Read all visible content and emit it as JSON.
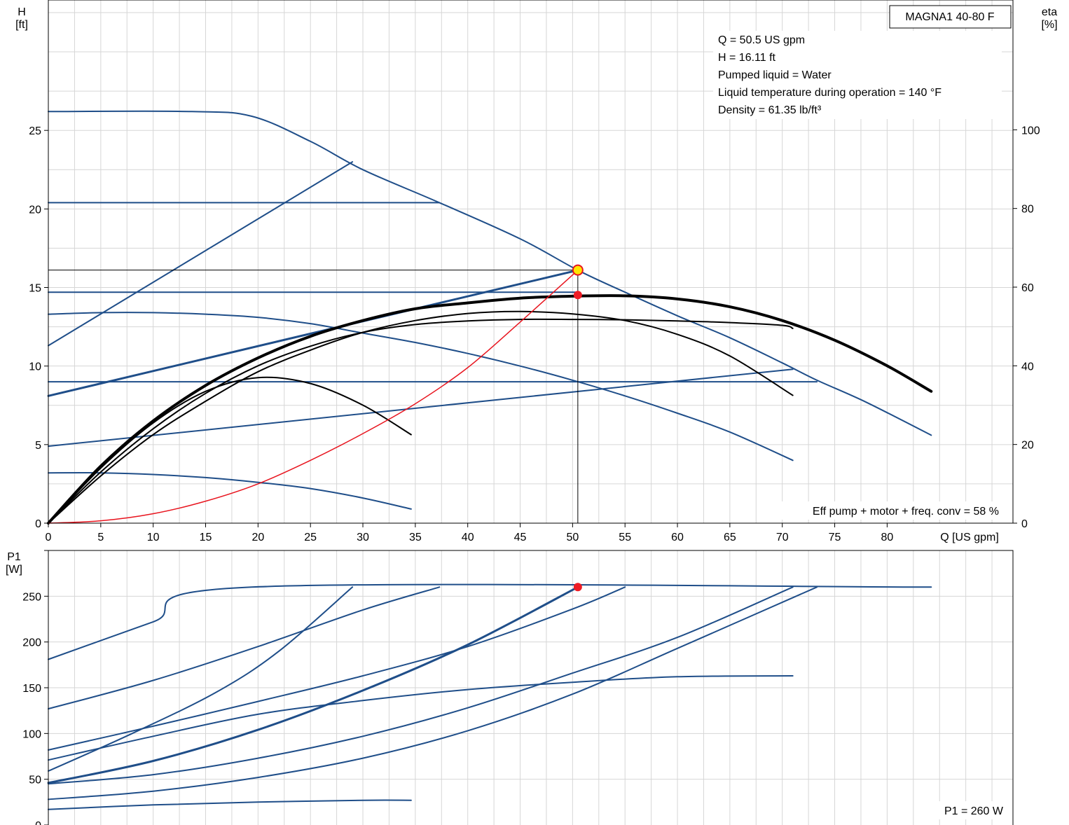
{
  "chart_data": [
    {
      "id": "head-efficiency",
      "type": "line",
      "pump_model": "MAGNA1 40-80 F",
      "ylabel": [
        "H",
        "[ft]"
      ],
      "y2label": [
        "eta",
        "[%]"
      ],
      "xlabel": "Q [US gpm]",
      "xlim": [
        0,
        92
      ],
      "ylim": [
        0,
        33.3
      ],
      "y2lim": [
        0,
        133
      ],
      "x_ticks": [
        0,
        5,
        10,
        15,
        20,
        25,
        30,
        35,
        40,
        45,
        50,
        55,
        60,
        65,
        70,
        75,
        80
      ],
      "y_ticks": [
        0,
        5,
        10,
        15,
        20,
        25
      ],
      "y2_ticks": [
        0,
        20,
        40,
        60,
        80,
        100
      ],
      "grid": true,
      "info_lines": [
        "Q = 50.5 US gpm",
        "H = 16.11 ft",
        "Pumped liquid = Water",
        "Liquid temperature during operation = 140 °F",
        "Density = 61.35 lb/ft³"
      ],
      "note": "Eff pump + motor + freq. conv = 58 %",
      "duty_point": {
        "x": 50.5,
        "y": 16.11
      },
      "eta_point": {
        "x": 50.5,
        "eta": 58
      },
      "series": [
        {
          "axis": "H",
          "color": "#1f4e89",
          "width": 2,
          "x": [
            0,
            13.7,
            19.4,
            25,
            30,
            37.3,
            45,
            50.5,
            55,
            60,
            65,
            70,
            73.3,
            78,
            84.2
          ],
          "y": [
            26.2,
            26.2,
            25.9,
            24.3,
            22.5,
            20.4,
            18.1,
            16.1,
            14.7,
            13.2,
            11.8,
            10.2,
            9.1,
            7.7,
            5.6
          ]
        },
        {
          "axis": "H",
          "color": "#1f4e89",
          "width": 2,
          "x": [
            0,
            37.3
          ],
          "y": [
            20.4,
            20.4
          ]
        },
        {
          "axis": "H",
          "color": "#1f4e89",
          "width": 2,
          "x": [
            0,
            50.5
          ],
          "y": [
            14.7,
            14.7
          ]
        },
        {
          "axis": "H",
          "color": "#1f4e89",
          "width": 2,
          "x": [
            0,
            73.3
          ],
          "y": [
            9.0,
            9.0
          ]
        },
        {
          "axis": "H",
          "color": "#1f4e89",
          "width": 2,
          "x": [
            0,
            29
          ],
          "y": [
            11.3,
            23.0
          ]
        },
        {
          "axis": "H",
          "color": "#1f4e89",
          "width": 3,
          "x": [
            0,
            50.5
          ],
          "y": [
            8.1,
            16.1
          ]
        },
        {
          "axis": "H",
          "color": "#1f4e89",
          "width": 2,
          "x": [
            0,
            71
          ],
          "y": [
            4.9,
            9.8
          ]
        },
        {
          "axis": "H",
          "color": "#1f4e89",
          "width": 2,
          "x": [
            0,
            5,
            10,
            15,
            20,
            25,
            30,
            35,
            40,
            45,
            50,
            55,
            60,
            65,
            71
          ],
          "y": [
            13.3,
            13.4,
            13.4,
            13.3,
            13.1,
            12.7,
            12.1,
            11.5,
            10.8,
            10.0,
            9.1,
            8.1,
            7.0,
            5.8,
            4.0
          ]
        },
        {
          "axis": "H",
          "color": "#1f4e89",
          "width": 2,
          "x": [
            0,
            5,
            10,
            15,
            20,
            25,
            30,
            34.6
          ],
          "y": [
            3.2,
            3.2,
            3.1,
            2.9,
            2.6,
            2.2,
            1.6,
            0.9
          ]
        },
        {
          "axis": "eta",
          "color": "#000000",
          "width": 4,
          "x": [
            0,
            5,
            10,
            15,
            20,
            25,
            30,
            35,
            40,
            45,
            50,
            55,
            60,
            65,
            70,
            75,
            80,
            84.2
          ],
          "eta": [
            0,
            14.5,
            26,
            35,
            42,
            47.5,
            51.5,
            54.5,
            56,
            57.2,
            57.7,
            57.8,
            57,
            55,
            51.5,
            46.5,
            40,
            33.5
          ]
        },
        {
          "axis": "eta",
          "color": "#000000",
          "width": 2,
          "x": [
            0,
            5,
            10,
            15,
            20,
            25,
            30,
            35,
            40,
            45,
            50,
            55,
            60,
            65,
            70,
            71
          ],
          "eta": [
            0,
            13,
            24,
            33,
            40,
            45,
            48.5,
            50.5,
            51.4,
            51.8,
            51.8,
            51.7,
            51.4,
            51,
            50.3,
            49.5
          ]
        },
        {
          "axis": "eta",
          "color": "#000000",
          "width": 2,
          "x": [
            0,
            5,
            10,
            15,
            20,
            25,
            30,
            35,
            40,
            45,
            50,
            55,
            60,
            65,
            71
          ],
          "eta": [
            0,
            12,
            22.5,
            31,
            38.5,
            44,
            48.5,
            51.5,
            53.3,
            53.8,
            53.2,
            51.5,
            48,
            42.5,
            32.5
          ]
        },
        {
          "axis": "eta",
          "color": "#000000",
          "width": 2,
          "x": [
            0,
            5,
            10,
            15,
            20,
            25,
            30,
            34.6
          ],
          "eta": [
            0,
            14,
            25.5,
            33.5,
            37,
            35.5,
            30,
            22.5
          ]
        },
        {
          "axis": "H",
          "color": "#e8141e",
          "width": 1.5,
          "x": [
            0,
            5,
            10,
            15,
            20,
            25,
            30,
            35,
            40,
            45,
            50.5
          ],
          "y": [
            0,
            0.15,
            0.6,
            1.4,
            2.5,
            4.0,
            5.7,
            7.6,
            9.9,
            12.8,
            16.1
          ]
        }
      ]
    },
    {
      "id": "power",
      "type": "line",
      "ylabel": [
        "P1",
        "[W]"
      ],
      "xlim": [
        0,
        92
      ],
      "ylim": [
        0,
        300
      ],
      "y_ticks": [
        0,
        50,
        100,
        150,
        200,
        250
      ],
      "grid": true,
      "note": "P1 = 260 W",
      "duty_point": {
        "x": 50.5,
        "y": 260
      },
      "series": [
        {
          "color": "#1f4e89",
          "width": 2,
          "x": [
            0,
            10,
            19.4,
            84.2
          ],
          "y": [
            181,
            222,
            260,
            260
          ]
        },
        {
          "color": "#1f4e89",
          "width": 2,
          "x": [
            0,
            8,
            16,
            22,
            29
          ],
          "y": [
            59,
            100,
            145,
            190,
            260
          ]
        },
        {
          "color": "#1f4e89",
          "width": 2,
          "x": [
            0,
            10,
            20,
            30,
            37.3
          ],
          "y": [
            127,
            158,
            195,
            235,
            260
          ]
        },
        {
          "color": "#1f4e89",
          "width": 3,
          "x": [
            0,
            10,
            20,
            30,
            40,
            50.5
          ],
          "y": [
            46,
            70,
            104,
            147,
            197,
            260
          ]
        },
        {
          "color": "#1f4e89",
          "width": 2,
          "x": [
            0,
            10,
            20,
            30,
            40,
            50,
            55
          ],
          "y": [
            82,
            108,
            135,
            163,
            195,
            236,
            260
          ]
        },
        {
          "color": "#1f4e89",
          "width": 2,
          "x": [
            0,
            10,
            20,
            30,
            40,
            50,
            60,
            71
          ],
          "y": [
            45,
            55,
            73,
            97,
            128,
            166,
            205,
            260
          ]
        },
        {
          "color": "#1f4e89",
          "width": 2,
          "x": [
            0,
            10,
            20,
            30,
            40,
            50,
            60,
            73.3
          ],
          "y": [
            28,
            37,
            52,
            73,
            103,
            143,
            193,
            260
          ]
        },
        {
          "color": "#1f4e89",
          "width": 2,
          "x": [
            0,
            10,
            20,
            30,
            40,
            50,
            60,
            71
          ],
          "y": [
            71,
            97,
            121,
            136,
            148,
            156,
            162,
            163
          ]
        },
        {
          "color": "#1f4e89",
          "width": 2,
          "x": [
            0,
            10,
            20,
            30,
            34.6
          ],
          "y": [
            17,
            22,
            25,
            27,
            27
          ]
        }
      ]
    }
  ]
}
